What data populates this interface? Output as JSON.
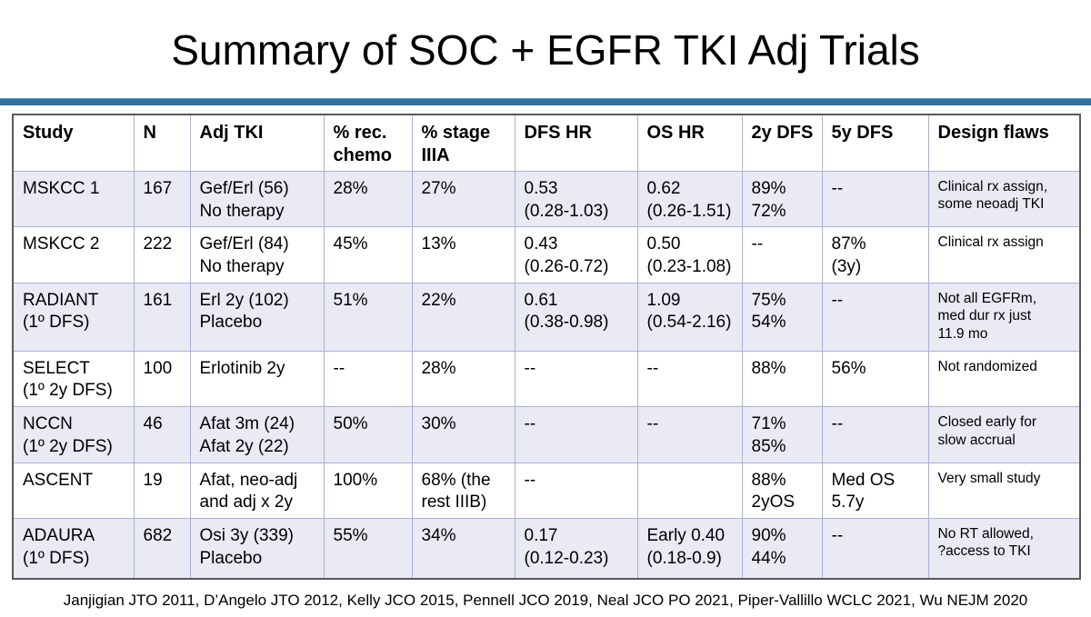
{
  "title": "Summary of SOC + EGFR TKI Adj Trials",
  "colors": {
    "divider_bar": "#35719a",
    "row_stripe": "#e9eaf3",
    "grid_line": "#a9b1d4"
  },
  "table": {
    "columns": [
      "Study",
      "N",
      "Adj TKI",
      "% rec.\nchemo",
      "% stage\nIIIA",
      "DFS HR",
      "OS HR",
      "2y DFS",
      "5y DFS",
      "Design flaws"
    ],
    "rows": [
      {
        "cells": [
          "MSKCC 1",
          "167",
          "Gef/Erl (56)\nNo therapy",
          "28%",
          "27%",
          "0.53\n(0.28-1.03)",
          "0.62\n(0.26-1.51)",
          "89%\n72%",
          "--",
          "Clinical rx assign,\nsome neoadj TKI"
        ]
      },
      {
        "cells": [
          "MSKCC 2",
          "222",
          "Gef/Erl (84)\nNo therapy",
          "45%",
          "13%",
          "0.43\n(0.26-0.72)",
          "0.50\n(0.23-1.08)",
          "--",
          "87%\n(3y)",
          "Clinical rx assign"
        ]
      },
      {
        "cells": [
          "RADIANT\n(1º DFS)",
          "161",
          "Erl 2y (102)\nPlacebo",
          "51%",
          "22%",
          "0.61\n(0.38-0.98)",
          "1.09\n(0.54-2.16)",
          "75%\n54%",
          "--",
          "Not all EGFRm,\nmed dur rx just\n11.9 mo"
        ]
      },
      {
        "cells": [
          "SELECT\n(1º 2y DFS)",
          "100",
          "Erlotinib 2y",
          "--",
          "28%",
          "--",
          "--",
          "88%",
          "56%",
          "Not randomized"
        ]
      },
      {
        "cells": [
          "NCCN\n(1º 2y DFS)",
          "46",
          "Afat 3m (24)\nAfat 2y (22)",
          "50%",
          "30%",
          "--",
          "--",
          "71%\n85%",
          "--",
          "Closed early for\nslow accrual"
        ]
      },
      {
        "cells": [
          "ASCENT",
          "19",
          "Afat, neo-adj\nand adj x 2y",
          "100%",
          "68% (the\nrest IIIB)",
          "--",
          "",
          "88%\n2yOS",
          "Med OS\n5.7y",
          "Very small study"
        ]
      },
      {
        "cells": [
          "ADAURA\n(1º DFS)",
          "682",
          "Osi 3y (339)\nPlacebo",
          "55%",
          "34%",
          "0.17\n(0.12-0.23)",
          "Early 0.40\n(0.18-0.9)",
          "90%\n44%",
          "--",
          "No RT allowed,\n?access to TKI"
        ]
      }
    ]
  },
  "footer": "Janjigian JTO 2011, D’Angelo JTO 2012, Kelly JCO 2015, Pennell JCO 2019, Neal JCO PO 2021, Piper-Vallillo WCLC 2021, Wu NEJM 2020"
}
